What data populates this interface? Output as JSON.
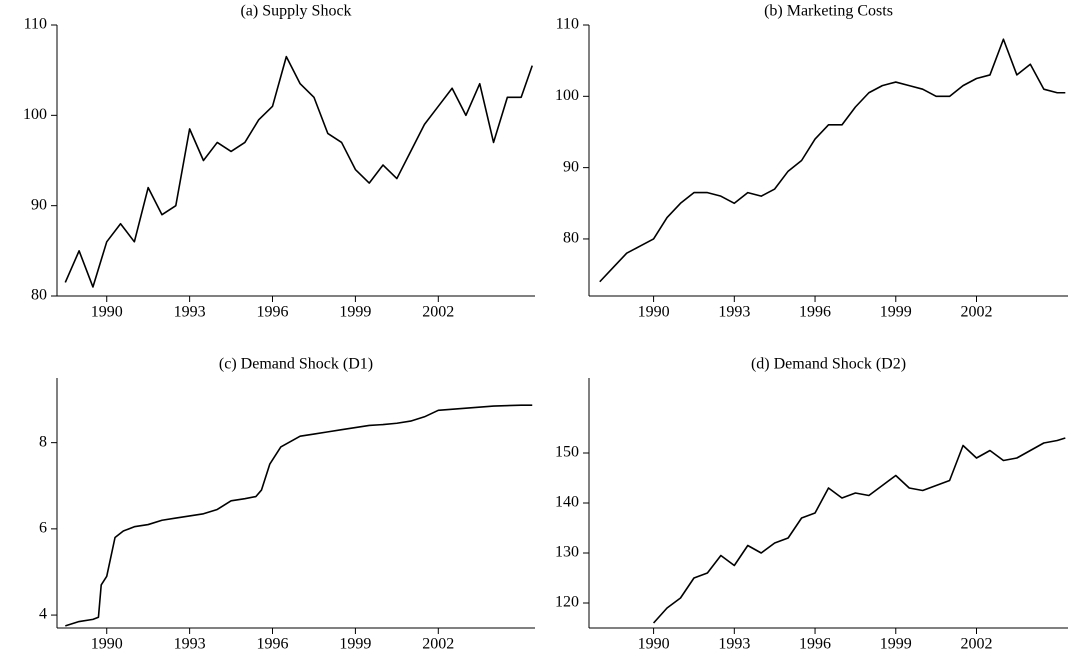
{
  "chart_data": [
    {
      "type": "line",
      "title": "(a) Supply Shock",
      "color": "#000000",
      "x": [
        1988.5,
        1989,
        1989.5,
        1990,
        1990.5,
        1991,
        1991.5,
        1992,
        1992.5,
        1993,
        1993.5,
        1994,
        1994.5,
        1995,
        1995.5,
        1996,
        1996.5,
        1997,
        1997.5,
        1998,
        1998.5,
        1999,
        1999.5,
        2000,
        2000.5,
        2001,
        2001.5,
        2002,
        2002.5,
        2003,
        2003.5,
        2004,
        2004.5,
        2005,
        2005.4
      ],
      "values": [
        81.5,
        85,
        81,
        86,
        88,
        86,
        92,
        89,
        90,
        98.5,
        95,
        97,
        96,
        97,
        99.5,
        101,
        106.5,
        103.5,
        102,
        98,
        97,
        94,
        92.5,
        94.5,
        93,
        96,
        99,
        101,
        103,
        100,
        103.5,
        97,
        102,
        102,
        105.5
      ],
      "xlim": [
        1988.2,
        2005.5
      ],
      "ylim": [
        80,
        110
      ],
      "xticks": [
        1990,
        1993,
        1996,
        1999,
        2002
      ],
      "yticks": [
        80,
        90,
        100,
        110
      ]
    },
    {
      "type": "line",
      "title": "(b) Marketing Costs",
      "color": "#000000",
      "x": [
        1988,
        1988.5,
        1989,
        1989.5,
        1990,
        1990.5,
        1991,
        1991.5,
        1992,
        1992.5,
        1993,
        1993.5,
        1994,
        1994.5,
        1995,
        1995.5,
        1996,
        1996.5,
        1997,
        1997.5,
        1998,
        1998.5,
        1999,
        1999.5,
        2000,
        2000.5,
        2001,
        2001.5,
        2002,
        2002.5,
        2003,
        2003.5,
        2004,
        2004.5,
        2005,
        2005.3
      ],
      "values": [
        74,
        76,
        78,
        79,
        80,
        83,
        85,
        86.5,
        86.5,
        86,
        85,
        86.5,
        86,
        87,
        89.5,
        91,
        94,
        96,
        96,
        98.5,
        100.5,
        101.5,
        102,
        101.5,
        101,
        100,
        100,
        101.5,
        102.5,
        103,
        108,
        103,
        104.5,
        101,
        100.5,
        100.5
      ],
      "xlim": [
        1987.6,
        2005.4
      ],
      "ylim": [
        72,
        110
      ],
      "xticks": [
        1990,
        1993,
        1996,
        1999,
        2002
      ],
      "yticks": [
        80,
        90,
        100,
        110
      ]
    },
    {
      "type": "line",
      "title": "(c) Demand Shock (D1)",
      "color": "#000000",
      "x": [
        1988.5,
        1989,
        1989.5,
        1989.7,
        1989.8,
        1990,
        1990.3,
        1990.6,
        1991,
        1991.5,
        1992,
        1992.5,
        1993,
        1993.5,
        1994,
        1994.5,
        1995,
        1995.4,
        1995.6,
        1995.9,
        1996.3,
        1997,
        1997.5,
        1998,
        1998.5,
        1999,
        1999.5,
        2000,
        2000.5,
        2001,
        2001.5,
        2002,
        2003,
        2004,
        2005,
        2005.4
      ],
      "values": [
        3.75,
        3.85,
        3.9,
        3.95,
        4.7,
        4.9,
        5.8,
        5.95,
        6.05,
        6.1,
        6.2,
        6.25,
        6.3,
        6.35,
        6.45,
        6.65,
        6.7,
        6.75,
        6.9,
        7.5,
        7.9,
        8.15,
        8.2,
        8.25,
        8.3,
        8.35,
        8.4,
        8.42,
        8.45,
        8.5,
        8.6,
        8.75,
        8.8,
        8.85,
        8.87,
        8.87
      ],
      "xlim": [
        1988.2,
        2005.5
      ],
      "ylim": [
        3.7,
        9.5
      ],
      "xticks": [
        1990,
        1993,
        1996,
        1999,
        2002
      ],
      "yticks": [
        4,
        6,
        8
      ]
    },
    {
      "type": "line",
      "title": "(d) Demand Shock (D2)",
      "color": "#000000",
      "x": [
        1990,
        1990.5,
        1991,
        1991.5,
        1992,
        1992.5,
        1993,
        1993.5,
        1994,
        1994.5,
        1995,
        1995.5,
        1996,
        1996.5,
        1997,
        1997.5,
        1998,
        1998.5,
        1999,
        1999.5,
        2000,
        2000.5,
        2001,
        2001.5,
        2002,
        2002.5,
        2003,
        2003.5,
        2004,
        2004.5,
        2005,
        2005.3
      ],
      "values": [
        116,
        119,
        121,
        125,
        126,
        129.5,
        127.5,
        131.5,
        130,
        132,
        133,
        137,
        138,
        143,
        141,
        142,
        141.5,
        143.5,
        145.5,
        143,
        142.5,
        143.5,
        144.5,
        151.5,
        149,
        150.5,
        148.5,
        149,
        150.5,
        152,
        152.5,
        153
      ],
      "xlim": [
        1987.6,
        2005.4
      ],
      "ylim": [
        115,
        165
      ],
      "xticks": [
        1990,
        1993,
        1996,
        1999,
        2002
      ],
      "yticks": [
        120,
        130,
        140,
        150
      ]
    }
  ]
}
